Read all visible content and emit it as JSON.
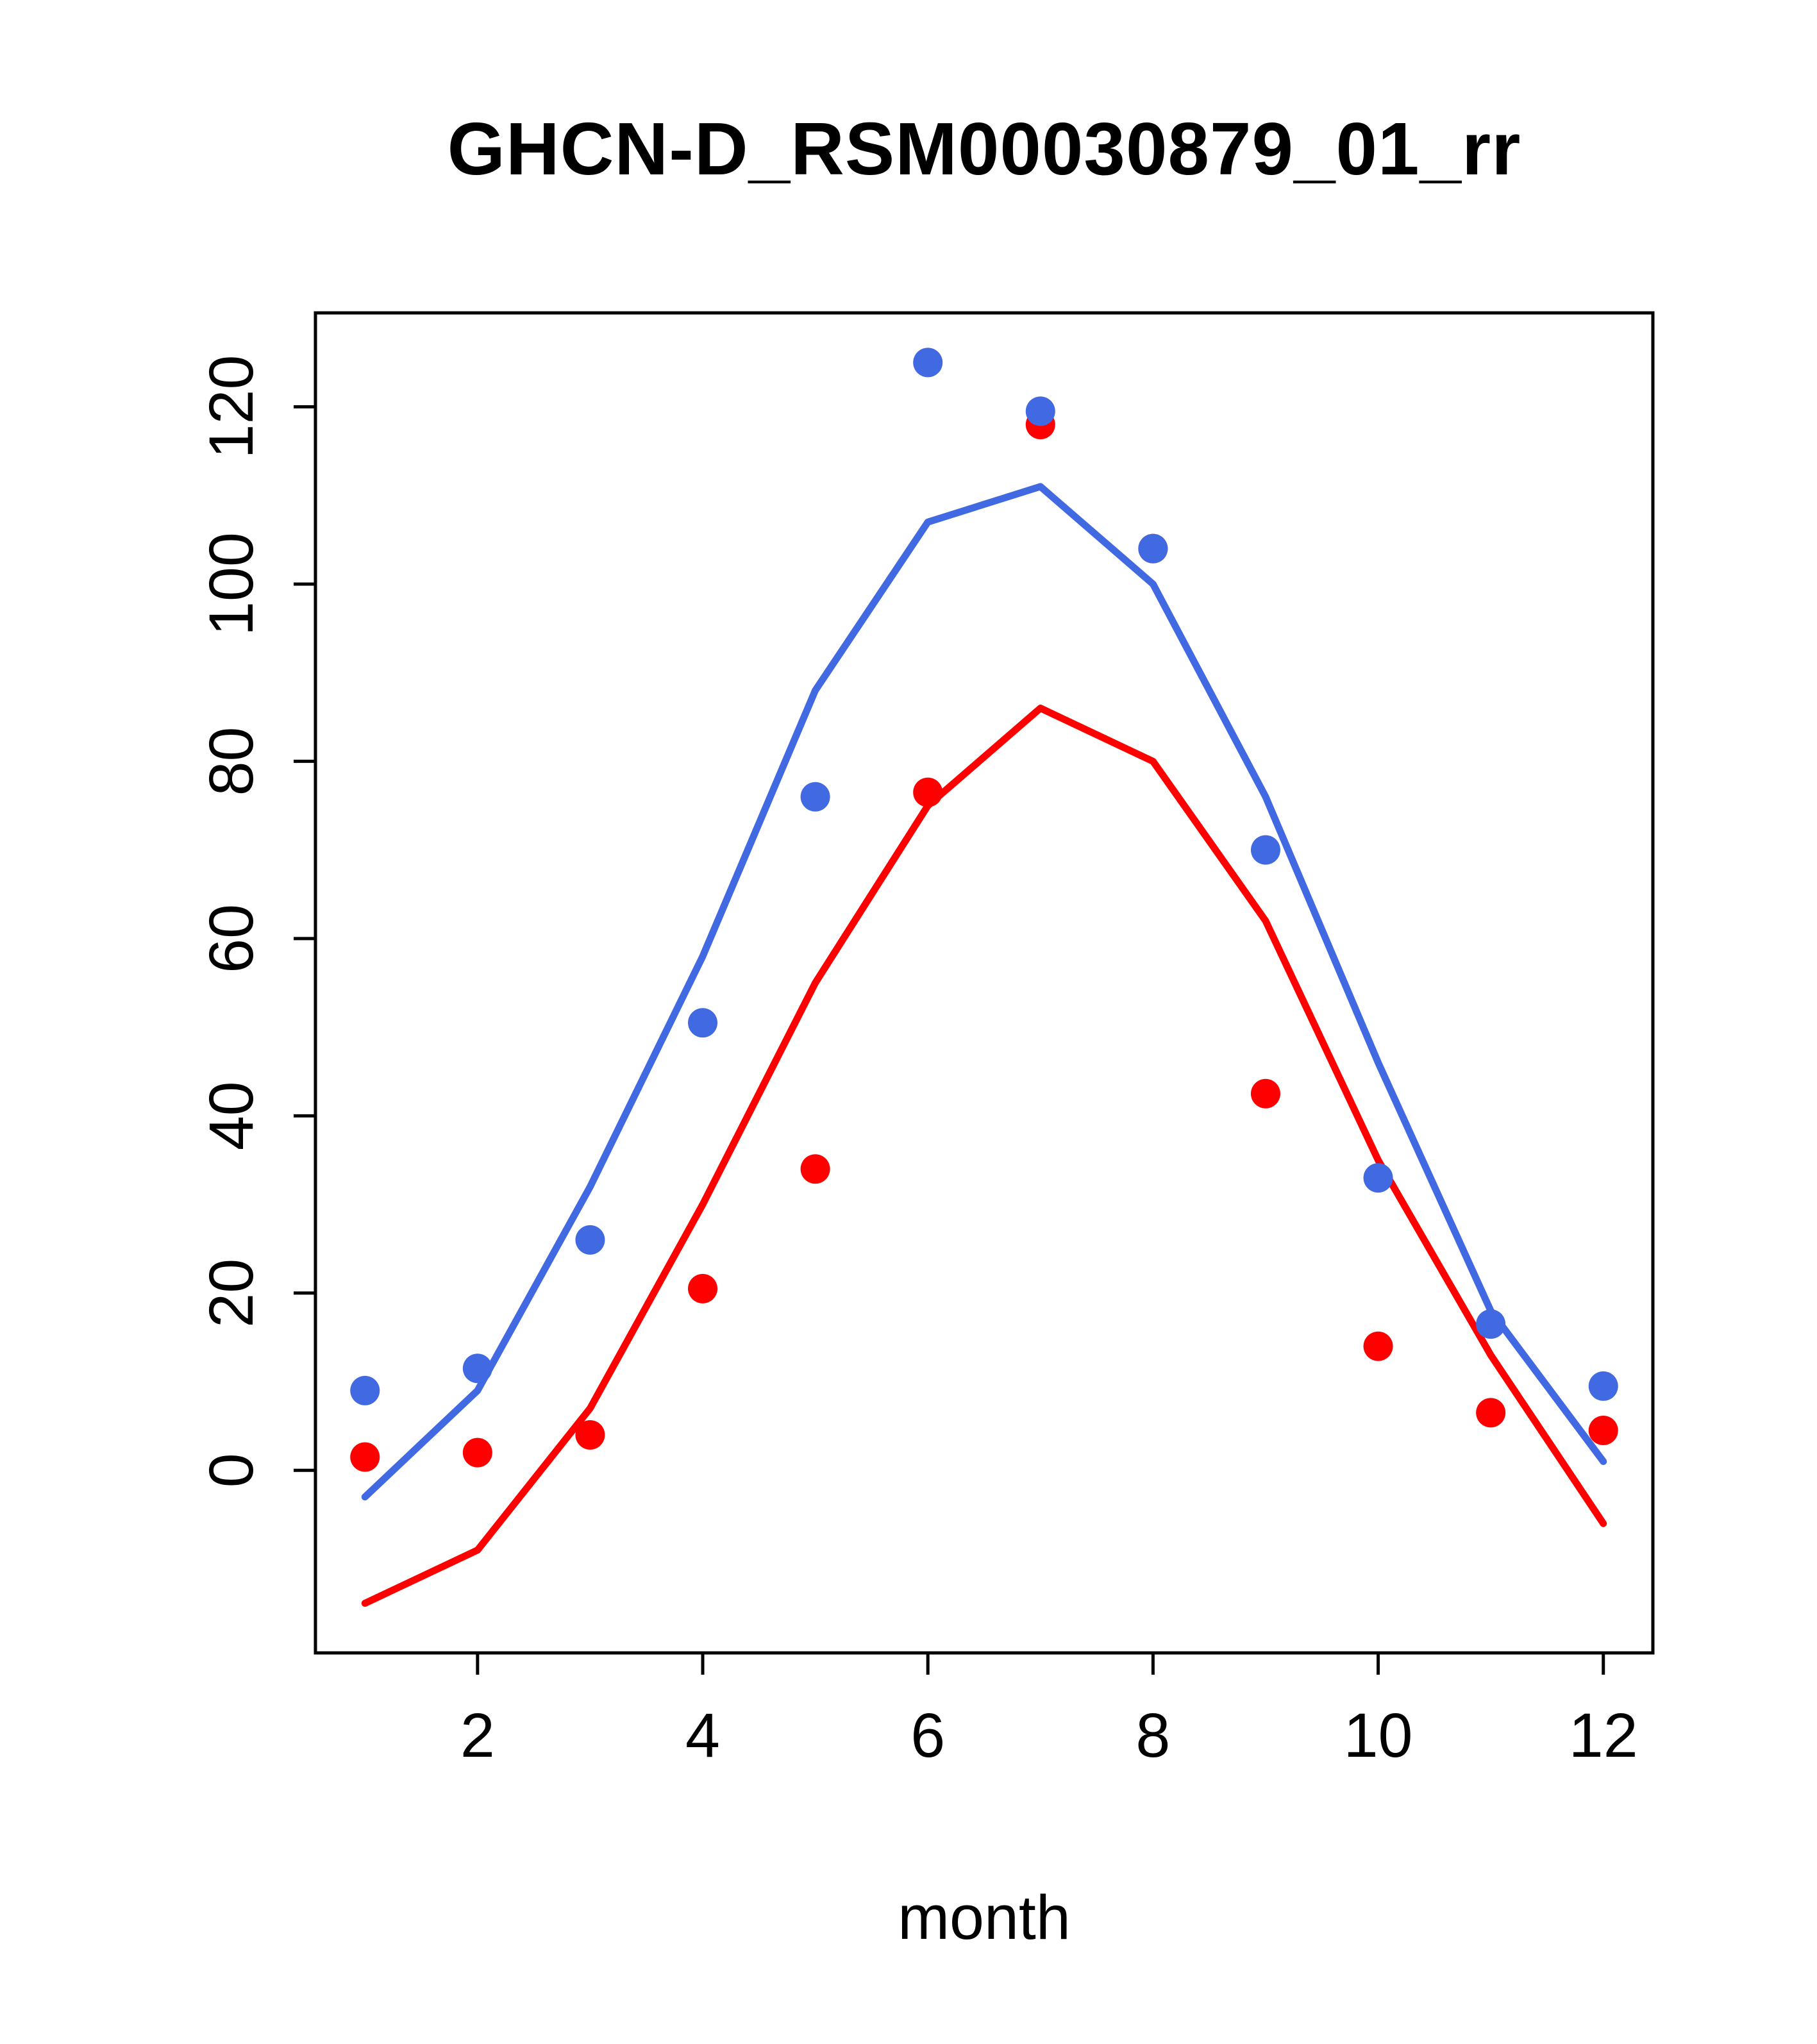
{
  "chart_data": {
    "type": "line",
    "title": "GHCN-D_RSM00030879_01_rr",
    "xlabel": "month",
    "ylabel": "",
    "x": [
      1,
      2,
      3,
      4,
      5,
      6,
      7,
      8,
      9,
      10,
      11,
      12
    ],
    "xticks": [
      2,
      4,
      6,
      8,
      10,
      12
    ],
    "yticks": [
      0,
      20,
      40,
      60,
      80,
      100,
      120
    ],
    "xlim": [
      0.56,
      12.44
    ],
    "ylim": [
      -20.6,
      130.6
    ],
    "grid": false,
    "legend": "none",
    "colors": {
      "blue": "#4169E1",
      "red": "#FF0000"
    },
    "series": [
      {
        "name": "blue-line",
        "type": "line",
        "color": "#4169E1",
        "values": [
          -3,
          9,
          32,
          58,
          88,
          107,
          111,
          100,
          76,
          46,
          18,
          1
        ]
      },
      {
        "name": "red-line",
        "type": "line",
        "color": "#FF0000",
        "values": [
          -15,
          -9,
          7,
          30,
          55,
          75,
          86,
          80,
          62,
          35,
          13,
          -6
        ]
      },
      {
        "name": "red-points",
        "type": "points",
        "color": "#FF0000",
        "values": [
          1.5,
          2,
          4,
          20.5,
          34,
          76.5,
          118,
          104,
          42.5,
          14,
          6.5,
          4.5
        ]
      },
      {
        "name": "blue-points",
        "type": "points",
        "color": "#4169E1",
        "values": [
          9,
          11.5,
          26,
          50.5,
          76,
          125,
          119.5,
          104,
          70,
          33,
          16.5,
          9.5
        ]
      }
    ]
  }
}
